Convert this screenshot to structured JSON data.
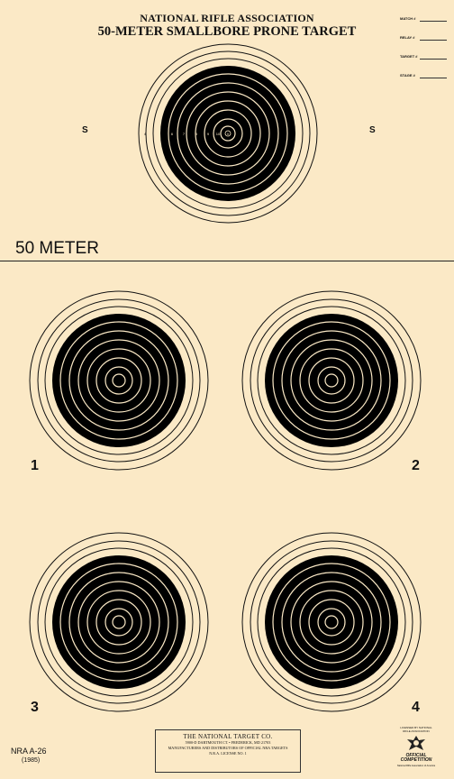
{
  "header": {
    "line1": "NATIONAL RIFLE ASSOCIATION",
    "line2": "50-METER SMALLBORE PRONE TARGET"
  },
  "fields": [
    {
      "label": "MATCH #"
    },
    {
      "label": "RELAY #"
    },
    {
      "label": "TARGET #"
    },
    {
      "label": "STAGE #"
    }
  ],
  "sighter": {
    "left_mark": "S",
    "right_mark": "S",
    "ring_numbers": [
      "4",
      "5",
      "6",
      "7",
      "8",
      "9",
      "10",
      "X"
    ]
  },
  "section_label": "50 METER",
  "bulls": [
    {
      "number": "1"
    },
    {
      "number": "2"
    },
    {
      "number": "3"
    },
    {
      "number": "4"
    }
  ],
  "footer": {
    "company": "THE NATIONAL TARGET CO.",
    "address": "5900-D DARTMOUTH CT. • FREDERICK, MD 21703",
    "distributor": "MANUFACTURERS AND DISTRIBUTORS OF OFFICIAL NRA TARGETS",
    "license": "N.R.A. LICENSE NO. 1",
    "model": "NRA  A-26",
    "year": "(1985)"
  },
  "seal": {
    "top_text": "LICENSED BY NATIONAL RIFLE ASSOCIATION",
    "official_text": "OFFICIAL COMPETITION",
    "fine_print": "National Rifle Association of America"
  },
  "colors": {
    "paper": "#fbe9c6",
    "ink": "#000000"
  }
}
